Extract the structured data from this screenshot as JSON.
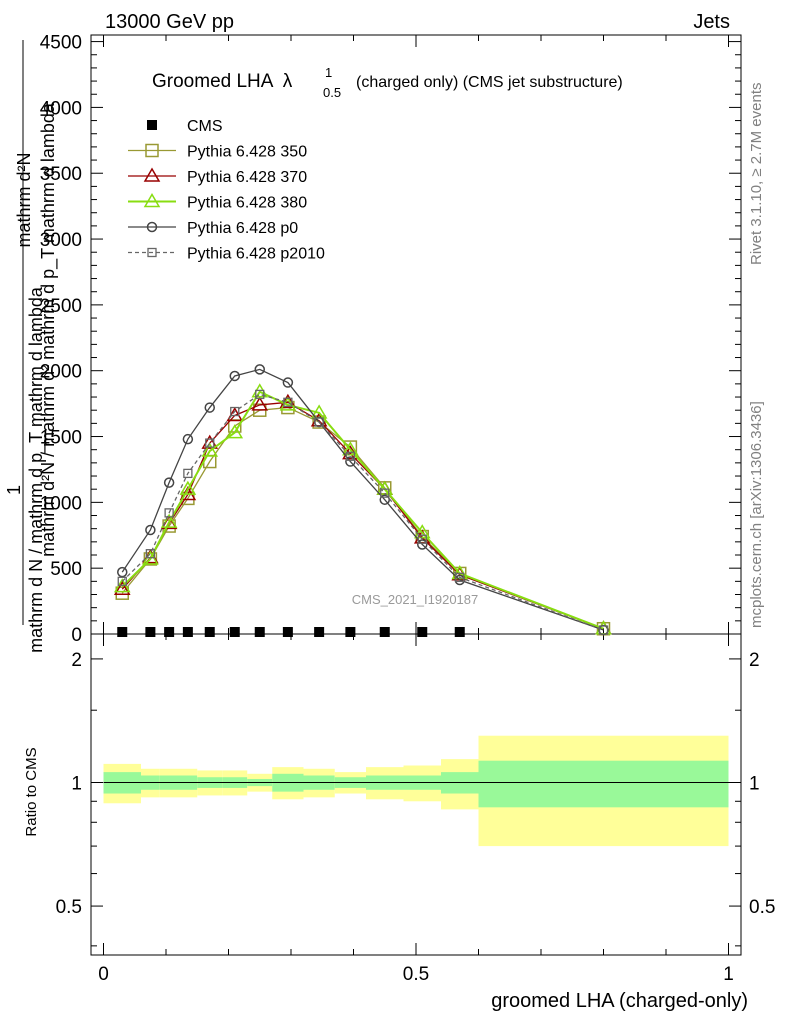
{
  "header": {
    "left": "13000 GeV pp",
    "right": "Jets"
  },
  "side_labels": {
    "rivet": "Rivet 3.1.10, ≥ 2.7M events",
    "mcplots": "mcplots.cern.ch [arXiv:1306.3436]"
  },
  "watermark": "CMS_2021_I1920187",
  "chart_data": {
    "type": "line",
    "title": {
      "main": "Groomed LHA",
      "symbol": "λ",
      "sup": "1",
      "sub": "0.5",
      "rest": "(charged only) (CMS jet substructure)"
    },
    "ylabel": {
      "numerator": "mathrm d²N",
      "one": "1",
      "denominator": "mathrm d N / mathrm d p_T mathrm d lambda"
    },
    "ylabel_overlap": "mathrm d²N / mathrm d² mathrm d p_T mathrm d lambda",
    "xlabel": "groomed LHA (charged-only)",
    "ylim": [
      0,
      4550
    ],
    "yticks": [
      0,
      500,
      1000,
      1500,
      2000,
      2500,
      3000,
      3500,
      4000,
      4500
    ],
    "ytick_labels": [
      "0",
      "500",
      "1000",
      "1500",
      "2000",
      "2500",
      "3000",
      "3500",
      "4000",
      "4500"
    ],
    "xlim": [
      -0.02,
      1.02
    ],
    "xticks": [
      0,
      0.5,
      1
    ],
    "xtick_labels": [
      "0",
      "0.5",
      "1"
    ],
    "x": [
      0.03,
      0.075,
      0.105,
      0.135,
      0.17,
      0.21,
      0.25,
      0.295,
      0.345,
      0.395,
      0.45,
      0.51,
      0.57,
      0.8
    ],
    "bin_edges": [
      0.0,
      0.06,
      0.09,
      0.12,
      0.15,
      0.19,
      0.23,
      0.27,
      0.32,
      0.37,
      0.42,
      0.48,
      0.54,
      0.6,
      1.0
    ],
    "legend_position": "top-left",
    "series": [
      {
        "name": "CMS",
        "style": "marker",
        "values": [
          10,
          10,
          10,
          10,
          10,
          10,
          10,
          10,
          10,
          10,
          10,
          10,
          10,
          10
        ]
      },
      {
        "name": "Pythia 6.428 350",
        "style": "square-open",
        "color": "#999933",
        "values": [
          310,
          570,
          820,
          1030,
          1310,
          1580,
          1700,
          1720,
          1610,
          1420,
          1110,
          740,
          460,
          40
        ]
      },
      {
        "name": "Pythia 6.428 370",
        "style": "triangle-open",
        "color": "#990000",
        "values": [
          340,
          580,
          840,
          1060,
          1450,
          1660,
          1740,
          1760,
          1620,
          1370,
          1100,
          730,
          450,
          40
        ]
      },
      {
        "name": "Pythia 6.428 380",
        "style": "triangle-open",
        "color": "#88dd11",
        "values": [
          360,
          570,
          850,
          1100,
          1390,
          1530,
          1840,
          1740,
          1680,
          1400,
          1100,
          770,
          460,
          40
        ]
      },
      {
        "name": "Pythia 6.428 p0",
        "style": "circle-open",
        "color": "#444444",
        "values": [
          470,
          790,
          1150,
          1480,
          1720,
          1960,
          2010,
          1910,
          1610,
          1310,
          1020,
          680,
          410,
          30
        ]
      },
      {
        "name": "Pythia 6.428 p2010",
        "style": "square-open-dashed",
        "color": "#666666",
        "values": [
          400,
          610,
          920,
          1220,
          1450,
          1690,
          1820,
          1760,
          1610,
          1350,
          1070,
          720,
          430,
          30
        ]
      }
    ],
    "ratio": {
      "ylabel": "Ratio to CMS",
      "yticks": [
        0.5,
        1,
        2
      ],
      "ytick_labels": [
        "0.5",
        "1",
        "2"
      ],
      "ylim": [
        0.38,
        2.3
      ],
      "scale": "log",
      "inner_band": [
        0.06,
        0.04,
        0.04,
        0.04,
        0.03,
        0.03,
        0.02,
        0.05,
        0.04,
        0.03,
        0.04,
        0.04,
        0.06,
        0.13
      ],
      "outer_band": [
        0.11,
        0.08,
        0.08,
        0.08,
        0.07,
        0.07,
        0.05,
        0.09,
        0.08,
        0.06,
        0.09,
        0.1,
        0.14,
        0.3
      ]
    }
  }
}
